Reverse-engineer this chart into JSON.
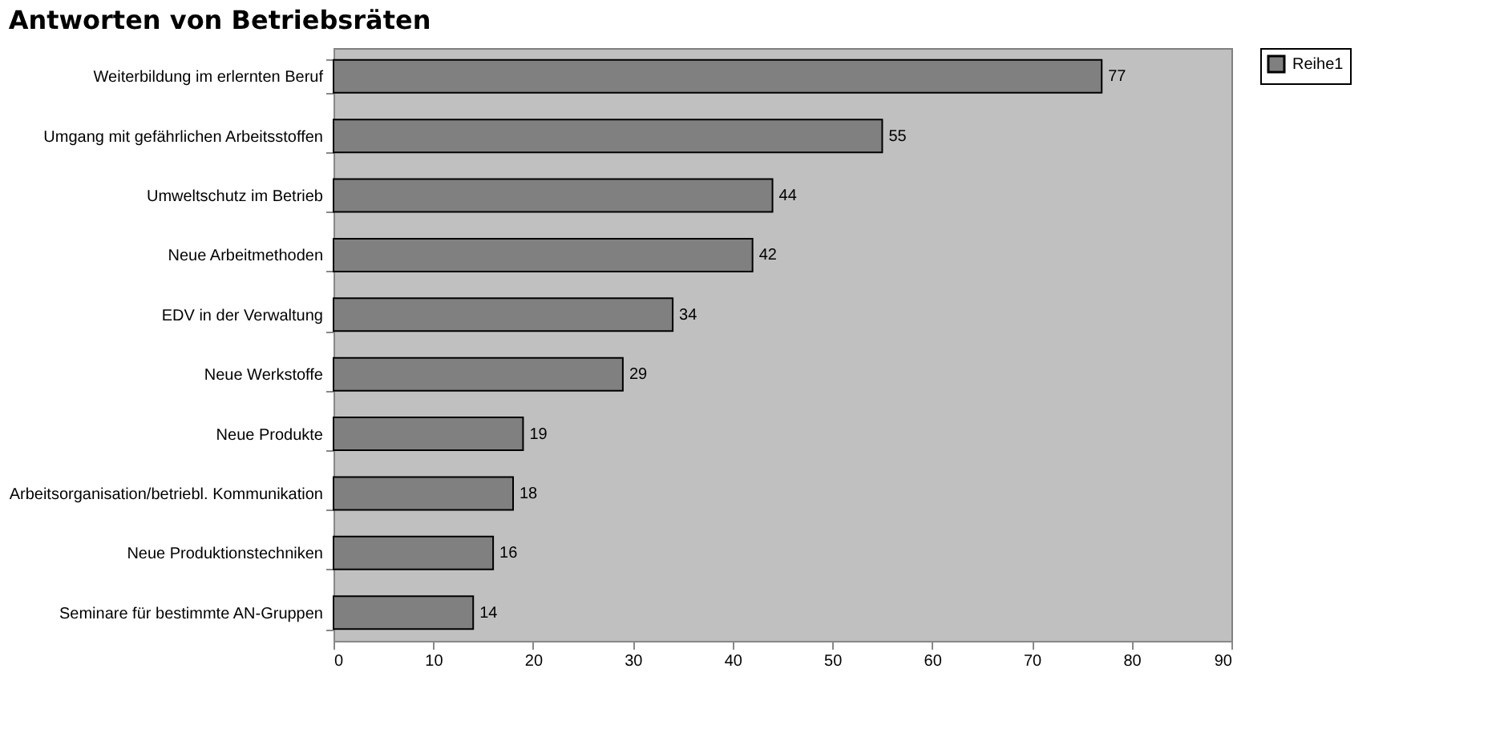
{
  "chart_data": {
    "type": "bar",
    "orientation": "horizontal",
    "title": "Antworten von Betriebsräten",
    "categories": [
      "Weiterbildung im erlernten Beruf",
      "Umgang mit gefährlichen Arbeitsstoffen",
      "Umweltschutz im Betrieb",
      "Neue Arbeitmethoden",
      "EDV in der Verwaltung",
      "Neue Werkstoffe",
      "Neue Produkte",
      "Arbeitsorganisation/betriebl. Kommunikation",
      "Neue Produktionstechniken",
      "Seminare für bestimmte AN-Gruppen"
    ],
    "series": [
      {
        "name": "Reihe1",
        "color": "#808080",
        "values": [
          77,
          55,
          44,
          42,
          34,
          29,
          19,
          18,
          16,
          14
        ]
      }
    ],
    "xlim": [
      0,
      90
    ],
    "xticks": [
      0,
      10,
      20,
      30,
      40,
      50,
      60,
      70,
      80,
      90
    ],
    "data_labels": true,
    "legend": "right",
    "grid": false
  }
}
